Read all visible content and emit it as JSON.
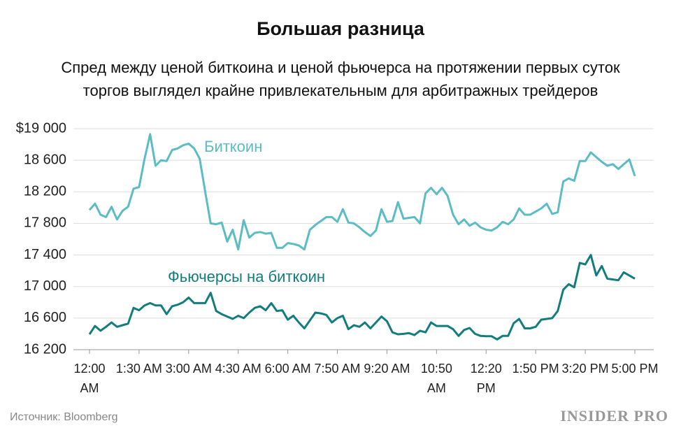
{
  "chart_data": {
    "type": "line",
    "title": "Большая разница",
    "subtitle": [
      "Спред между ценой биткоина и ценой фьючерса на протяжении первых суток",
      "торгов выглядел крайне привлекательным для арбитражных трейдеров"
    ],
    "source": "Источник: Bloomberg",
    "logo": "INSIDER PRO",
    "categories": [
      "12:00 AM",
      null,
      null,
      null,
      null,
      null,
      null,
      null,
      null,
      "1:30 AM",
      null,
      null,
      null,
      null,
      null,
      null,
      null,
      null,
      "3:00 AM",
      null,
      null,
      null,
      null,
      null,
      null,
      null,
      null,
      "4:30 AM",
      null,
      null,
      null,
      null,
      null,
      null,
      null,
      null,
      "6:00 AM",
      null,
      null,
      null,
      null,
      null,
      null,
      null,
      null,
      "7:50 AM",
      null,
      null,
      null,
      null,
      null,
      null,
      null,
      null,
      "9:20 AM",
      null,
      null,
      null,
      null,
      null,
      null,
      null,
      null,
      "10:50 AM",
      null,
      null,
      null,
      null,
      null,
      null,
      null,
      null,
      "12:20 PM",
      null,
      null,
      null,
      null,
      null,
      null,
      null,
      null,
      "1:50 PM",
      null,
      null,
      null,
      null,
      null,
      null,
      null,
      null,
      "3:20 PM",
      null,
      null,
      null,
      null,
      null,
      null,
      null,
      null,
      "5:00 PM"
    ],
    "series": [
      {
        "name": "Биткоин",
        "color": "#5bbcc4",
        "values": [
          17970,
          18050,
          17910,
          17880,
          18010,
          17850,
          17960,
          18010,
          18240,
          18260,
          18620,
          18930,
          18530,
          18600,
          18590,
          18730,
          18750,
          18790,
          18810,
          18750,
          18620,
          18200,
          17800,
          17790,
          17810,
          17570,
          17720,
          17470,
          17840,
          17620,
          17680,
          17690,
          17670,
          17680,
          17490,
          17490,
          17550,
          17540,
          17520,
          17470,
          17720,
          17780,
          17830,
          17880,
          17880,
          17820,
          17980,
          17810,
          17800,
          17750,
          17690,
          17640,
          17710,
          17980,
          17820,
          17830,
          18070,
          17860,
          17870,
          17880,
          17800,
          18180,
          18250,
          18170,
          18250,
          18150,
          17910,
          17790,
          17850,
          17770,
          17810,
          17750,
          17720,
          17710,
          17750,
          17820,
          17790,
          17850,
          17990,
          17910,
          17910,
          17950,
          17990,
          18050,
          17920,
          17940,
          18330,
          18370,
          18340,
          18590,
          18590,
          18700,
          18640,
          18580,
          18530,
          18550,
          18490,
          18550,
          18610,
          18400
        ]
      },
      {
        "name": "Фьючерсы на биткоин",
        "color": "#137d7d",
        "values": [
          16395,
          16500,
          16440,
          16490,
          16545,
          16490,
          16510,
          16530,
          16730,
          16700,
          16760,
          16790,
          16760,
          16760,
          16650,
          16750,
          16770,
          16800,
          16860,
          16790,
          16790,
          16790,
          16920,
          16690,
          16650,
          16620,
          16590,
          16630,
          16600,
          16670,
          16730,
          16750,
          16700,
          16790,
          16690,
          16700,
          16580,
          16630,
          16545,
          16470,
          16570,
          16670,
          16660,
          16640,
          16545,
          16600,
          16630,
          16460,
          16510,
          16490,
          16545,
          16470,
          16545,
          16620,
          16560,
          16420,
          16395,
          16400,
          16410,
          16385,
          16440,
          16420,
          16545,
          16500,
          16500,
          16500,
          16460,
          16375,
          16450,
          16475,
          16400,
          16375,
          16370,
          16370,
          16330,
          16375,
          16375,
          16535,
          16590,
          16470,
          16470,
          16490,
          16580,
          16590,
          16600,
          16690,
          16960,
          17030,
          16990,
          17300,
          17280,
          17400,
          17140,
          17260,
          17100,
          17090,
          17080,
          17180,
          17140,
          17100
        ]
      }
    ],
    "ylim": [
      16200,
      19000
    ],
    "yticks": [
      {
        "value": 16200,
        "label": "16 200"
      },
      {
        "value": 16600,
        "label": "16 600"
      },
      {
        "value": 17000,
        "label": "17 000"
      },
      {
        "value": 17400,
        "label": "17 400"
      },
      {
        "value": 17800,
        "label": "17 800"
      },
      {
        "value": 18200,
        "label": "18 200"
      },
      {
        "value": 18600,
        "label": "18 600"
      },
      {
        "value": 19000,
        "label": "$19 000"
      }
    ],
    "grid": true
  }
}
